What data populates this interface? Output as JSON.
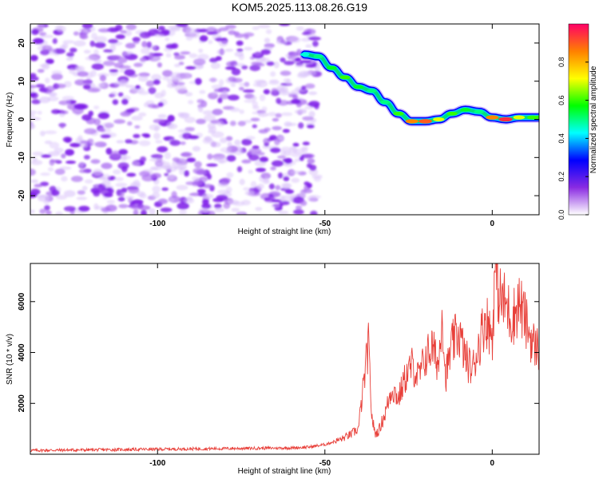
{
  "title": "KOM5.2025.113.08.26.G19",
  "chart_data": [
    {
      "type": "heatmap",
      "xlabel": "Height of straight line (km)",
      "ylabel": "Frequency (Hz)",
      "xlim": [
        -138,
        14
      ],
      "ylim": [
        -25,
        25
      ],
      "x_ticks": [
        -100,
        -50,
        0
      ],
      "y_ticks": [
        -20,
        -10,
        0,
        10,
        20
      ],
      "colorbar": {
        "label": "Normalized spectral amplitude",
        "range": [
          0,
          1
        ],
        "ticks": [
          0.0,
          0.2,
          0.4,
          0.6,
          0.8
        ],
        "colormap": [
          "#ffffff",
          "#8a2be2",
          "#0000ff",
          "#00ffff",
          "#00ff00",
          "#ffff00",
          "#ff8000",
          "#ff0066"
        ]
      },
      "noise_region": {
        "x_range": [
          -138,
          -52
        ],
        "amplitude_range": [
          0.0,
          0.15
        ]
      },
      "signal_track": {
        "x": [
          -56,
          -52,
          -48,
          -44,
          -40,
          -36,
          -32,
          -28,
          -24,
          -20,
          -16,
          -12,
          -8,
          -4,
          0,
          4,
          8,
          12,
          14
        ],
        "frequency": [
          17,
          16.5,
          13.5,
          11,
          8.5,
          7.5,
          4.5,
          1.5,
          -0.5,
          -0.5,
          0,
          1.5,
          2.5,
          2,
          0.5,
          0,
          0.5,
          0.5,
          0.5
        ],
        "amplitude": [
          0.45,
          0.5,
          0.55,
          0.6,
          0.55,
          0.5,
          0.5,
          0.6,
          0.85,
          0.9,
          0.7,
          0.6,
          0.55,
          0.5,
          0.85,
          0.95,
          0.7,
          0.6,
          0.6
        ]
      }
    },
    {
      "type": "line",
      "xlabel": "Height of straight line (km)",
      "ylabel": "SNR (10 * v/v)",
      "xlim": [
        -138,
        14
      ],
      "ylim": [
        0,
        7500
      ],
      "x_ticks": [
        -100,
        -50,
        0
      ],
      "y_ticks": [
        2000,
        4000,
        6000
      ],
      "color": "#e8403a",
      "series": [
        {
          "x": [
            -138,
            -60,
            -55,
            -50,
            -45,
            -42,
            -40,
            -38,
            -37,
            -36,
            -35,
            -34,
            -32,
            -30,
            -28,
            -26,
            -24,
            -22,
            -20,
            -18,
            -16,
            -15,
            -14,
            -12,
            -10,
            -8,
            -6,
            -4,
            -2,
            0,
            1,
            2,
            4,
            6,
            8,
            10,
            12,
            14
          ],
          "y": [
            150,
            250,
            280,
            380,
            600,
            800,
            1000,
            3200,
            4300,
            1500,
            800,
            900,
            1600,
            2600,
            2200,
            3000,
            3500,
            3000,
            3800,
            4200,
            3500,
            5800,
            3000,
            4300,
            4800,
            3800,
            3300,
            4300,
            5400,
            4600,
            7500,
            6200,
            5900,
            5300,
            6000,
            5200,
            4400,
            4100
          ]
        }
      ]
    }
  ]
}
